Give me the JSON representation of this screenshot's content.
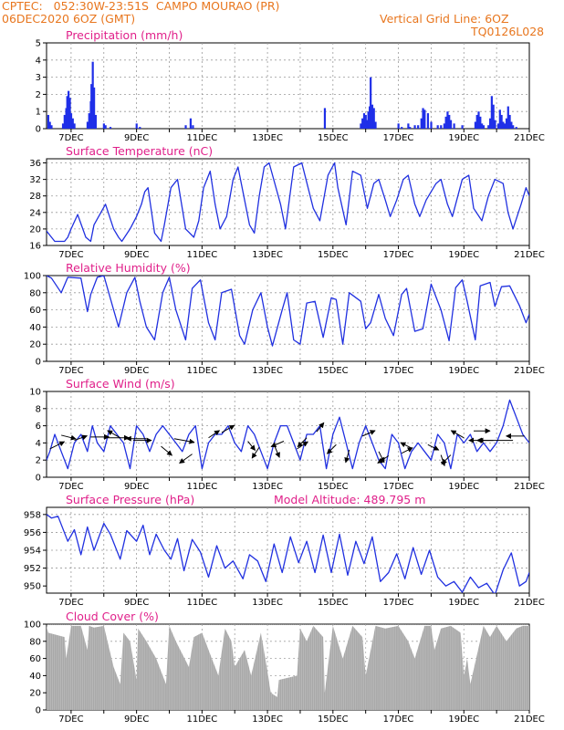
{
  "header": {
    "line1": "CPTEC:   052:30W-23:51S  CAMPO MOURAO (PR)",
    "line2": "06DEC2020 6OZ (GMT)",
    "grid_note": "Vertical Grid Line: 6OZ",
    "code": "TQ0126L028"
  },
  "colors": {
    "line": "#2030e0",
    "bar": "#1f2fe8",
    "cloud": "#a8a8a8",
    "title": "#e0208a",
    "header": "#e8761e"
  },
  "x_axis": {
    "start_day": 6.25,
    "end_day": 21.0,
    "tick_labels": [
      "7DEC",
      "9DEC",
      "11DEC",
      "13DEC",
      "15DEC",
      "17DEC",
      "19DEC",
      "21DEC"
    ],
    "tick_days": [
      7,
      9,
      11,
      13,
      15,
      17,
      19,
      21
    ]
  },
  "chart_data": [
    {
      "id": "precip",
      "type": "bar",
      "title": "Precipitation (mm/h)",
      "ylim": [
        0,
        5
      ],
      "yticks": [
        0,
        1,
        2,
        3,
        4,
        5
      ],
      "x": [
        6.3,
        6.35,
        6.4,
        6.75,
        6.8,
        6.85,
        6.88,
        6.92,
        6.96,
        7.0,
        7.05,
        7.1,
        7.5,
        7.55,
        7.6,
        7.62,
        7.66,
        7.7,
        7.75,
        8.0,
        8.05,
        8.2,
        9.0,
        9.1,
        10.5,
        10.65,
        10.72,
        14.75,
        15.85,
        15.9,
        15.95,
        16.0,
        16.05,
        16.08,
        16.12,
        16.15,
        16.2,
        16.25,
        16.3,
        17.0,
        17.1,
        17.3,
        17.35,
        17.5,
        17.6,
        17.7,
        17.75,
        17.8,
        17.9,
        18.0,
        18.2,
        18.3,
        18.4,
        18.45,
        18.5,
        18.55,
        18.6,
        18.7,
        18.95,
        19.35,
        19.4,
        19.45,
        19.5,
        19.55,
        19.6,
        19.75,
        19.8,
        19.85,
        19.9,
        19.95,
        20.05,
        20.1,
        20.15,
        20.2,
        20.25,
        20.3,
        20.35,
        20.4,
        20.45,
        20.5,
        20.6
      ],
      "values": [
        0.8,
        0.4,
        0.2,
        0.3,
        0.8,
        1.2,
        1.9,
        2.2,
        1.8,
        0.9,
        0.6,
        0.3,
        0.4,
        0.9,
        1.6,
        2.6,
        3.9,
        2.4,
        0.8,
        0.3,
        0.2,
        0.1,
        0.3,
        0.1,
        0.2,
        0.6,
        0.2,
        1.2,
        0.3,
        0.6,
        0.9,
        0.8,
        0.5,
        1.0,
        1.3,
        3.0,
        1.4,
        1.2,
        0.4,
        0.3,
        0.1,
        0.3,
        0.1,
        0.2,
        0.2,
        0.6,
        1.2,
        1.1,
        0.9,
        0.4,
        0.2,
        0.2,
        0.3,
        0.7,
        1.0,
        0.8,
        0.5,
        0.3,
        0.2,
        0.4,
        0.8,
        1.0,
        0.7,
        0.3,
        0.2,
        0.2,
        0.6,
        1.9,
        1.4,
        0.5,
        0.3,
        1.1,
        0.8,
        0.4,
        0.3,
        0.6,
        1.3,
        0.8,
        0.4,
        0.2,
        0.1
      ]
    },
    {
      "id": "temp",
      "type": "line",
      "title": "Surface Temperature (nC)",
      "ylim": [
        16,
        37
      ],
      "yticks": [
        16,
        20,
        24,
        28,
        32,
        36
      ],
      "x": [
        6.25,
        6.4,
        6.5,
        6.8,
        6.9,
        7.0,
        7.2,
        7.45,
        7.6,
        7.7,
        8.05,
        8.3,
        8.45,
        8.55,
        8.8,
        9.0,
        9.05,
        9.15,
        9.25,
        9.35,
        9.55,
        9.75,
        9.85,
        10.05,
        10.25,
        10.5,
        10.75,
        10.9,
        11.05,
        11.25,
        11.4,
        11.55,
        11.75,
        11.95,
        12.1,
        12.45,
        12.6,
        12.75,
        12.9,
        13.05,
        13.4,
        13.55,
        13.7,
        13.8,
        14.05,
        14.4,
        14.6,
        14.85,
        15.05,
        15.15,
        15.4,
        15.6,
        15.85,
        16.05,
        16.15,
        16.25,
        16.4,
        16.6,
        16.75,
        16.95,
        17.15,
        17.3,
        17.5,
        17.65,
        17.85,
        18.15,
        18.3,
        18.5,
        18.65,
        18.95,
        19.15,
        19.3,
        19.55,
        19.75,
        19.95,
        20.2,
        20.35,
        20.5,
        20.75,
        20.9,
        21.0
      ],
      "values": [
        19.5,
        18,
        17,
        17,
        18,
        20,
        23.5,
        18,
        17,
        21,
        26,
        20,
        18,
        17,
        20,
        23,
        24,
        26,
        29,
        30,
        19,
        17,
        21,
        30,
        32,
        20,
        18,
        22,
        30,
        34,
        26,
        20,
        23,
        32,
        35,
        21,
        19,
        28,
        35,
        36,
        26,
        20,
        29,
        35,
        36,
        25,
        22,
        33,
        36,
        30,
        21,
        34,
        33,
        25,
        28,
        31,
        32,
        27,
        23,
        27,
        32,
        33,
        26,
        23,
        27,
        31,
        32,
        26,
        23,
        32,
        33,
        25,
        22,
        28,
        32,
        31,
        24,
        20,
        26,
        30,
        28
      ]
    },
    {
      "id": "rh",
      "type": "line",
      "title": "Relative Humidity (%)",
      "ylim": [
        0,
        100
      ],
      "yticks": [
        0,
        20,
        40,
        60,
        80,
        100
      ],
      "x": [
        6.25,
        6.4,
        6.7,
        6.9,
        7.3,
        7.5,
        7.6,
        7.8,
        8.0,
        8.3,
        8.45,
        8.7,
        8.95,
        9.1,
        9.3,
        9.55,
        9.8,
        10.0,
        10.2,
        10.5,
        10.7,
        10.95,
        11.2,
        11.4,
        11.6,
        11.9,
        12.15,
        12.3,
        12.55,
        12.8,
        13.0,
        13.15,
        13.45,
        13.6,
        13.8,
        14.0,
        14.2,
        14.45,
        14.7,
        14.95,
        15.1,
        15.3,
        15.5,
        15.85,
        16.0,
        16.15,
        16.4,
        16.6,
        16.85,
        17.1,
        17.25,
        17.5,
        17.75,
        18.0,
        18.3,
        18.55,
        18.75,
        18.95,
        19.1,
        19.35,
        19.5,
        19.8,
        19.95,
        20.15,
        20.4,
        20.7,
        20.9,
        21.0
      ],
      "values": [
        100,
        97,
        80,
        98,
        97,
        58,
        78,
        98,
        100,
        60,
        40,
        80,
        98,
        70,
        40,
        25,
        80,
        98,
        60,
        25,
        85,
        95,
        45,
        25,
        80,
        84,
        30,
        20,
        60,
        80,
        40,
        18,
        60,
        80,
        25,
        20,
        68,
        70,
        28,
        74,
        72,
        20,
        80,
        70,
        38,
        45,
        78,
        50,
        30,
        78,
        85,
        35,
        38,
        90,
        60,
        24,
        86,
        95,
        70,
        25,
        88,
        92,
        64,
        87,
        88,
        65,
        45,
        55
      ]
    },
    {
      "id": "wind",
      "type": "line",
      "title": "Surface Wind (m/s)",
      "ylim": [
        0,
        10
      ],
      "yticks": [
        0,
        2,
        4,
        6,
        8,
        10
      ],
      "x": [
        6.25,
        6.35,
        6.5,
        6.7,
        6.9,
        7.1,
        7.3,
        7.5,
        7.65,
        7.8,
        8.0,
        8.2,
        8.4,
        8.6,
        8.8,
        9.0,
        9.2,
        9.4,
        9.6,
        9.8,
        10.0,
        10.2,
        10.4,
        10.6,
        10.8,
        11.0,
        11.2,
        11.4,
        11.6,
        11.8,
        12.0,
        12.2,
        12.4,
        12.6,
        12.8,
        13.0,
        13.2,
        13.4,
        13.6,
        13.8,
        14.0,
        14.2,
        14.4,
        14.6,
        14.8,
        15.0,
        15.2,
        15.4,
        15.6,
        15.8,
        16.0,
        16.2,
        16.4,
        16.6,
        16.8,
        17.0,
        17.2,
        17.4,
        17.6,
        17.8,
        18.0,
        18.2,
        18.4,
        18.6,
        18.8,
        19.0,
        19.2,
        19.4,
        19.6,
        19.8,
        20.0,
        20.2,
        20.4,
        20.6,
        20.8,
        21.0
      ],
      "values": [
        2,
        3,
        5,
        3,
        1,
        4,
        5,
        3,
        6,
        4,
        3,
        6,
        5,
        4,
        1,
        6,
        5,
        3,
        5,
        6,
        5,
        4,
        3,
        5,
        6,
        1,
        4,
        5,
        5,
        6,
        4,
        3,
        6,
        5,
        3,
        1,
        4,
        6,
        6,
        4,
        2,
        5,
        5,
        6,
        1,
        5,
        7,
        4,
        1,
        4,
        6,
        4,
        2,
        1,
        5,
        4,
        1,
        3,
        4,
        3,
        2,
        5,
        4,
        1,
        5,
        4,
        5,
        3,
        4,
        3,
        4,
        6,
        9,
        7,
        5,
        4
      ],
      "arrows": [
        {
          "x": 6.35,
          "y": 3.3,
          "dx": 16,
          "dy": -8
        },
        {
          "x": 6.7,
          "y": 4.9,
          "dx": 16,
          "dy": 4
        },
        {
          "x": 7.1,
          "y": 4.3,
          "dx": 14,
          "dy": -5
        },
        {
          "x": 7.6,
          "y": 4.7,
          "dx": 20,
          "dy": 0
        },
        {
          "x": 8.1,
          "y": 4.6,
          "dx": 24,
          "dy": 0
        },
        {
          "x": 8.5,
          "y": 4.6,
          "dx": -14,
          "dy": -8
        },
        {
          "x": 8.9,
          "y": 4.3,
          "dx": 20,
          "dy": 0
        },
        {
          "x": 9.3,
          "y": 4.5,
          "dx": -22,
          "dy": 0
        },
        {
          "x": 9.75,
          "y": 3.6,
          "dx": 12,
          "dy": 10
        },
        {
          "x": 10.15,
          "y": 4.5,
          "dx": 22,
          "dy": 4
        },
        {
          "x": 10.7,
          "y": 2.7,
          "dx": -14,
          "dy": 10
        },
        {
          "x": 11.2,
          "y": 4.6,
          "dx": 12,
          "dy": -8
        },
        {
          "x": 11.6,
          "y": 5.2,
          "dx": 14,
          "dy": -8
        },
        {
          "x": 12.4,
          "y": 4.2,
          "dx": 8,
          "dy": 10
        },
        {
          "x": 12.75,
          "y": 3.5,
          "dx": -8,
          "dy": 12
        },
        {
          "x": 13.2,
          "y": 3.8,
          "dx": 6,
          "dy": 14
        },
        {
          "x": 13.5,
          "y": 4.2,
          "dx": -14,
          "dy": 6
        },
        {
          "x": 13.9,
          "y": 3.3,
          "dx": 12,
          "dy": -8
        },
        {
          "x": 14.2,
          "y": 4.6,
          "dx": -10,
          "dy": 10
        },
        {
          "x": 14.5,
          "y": 5.3,
          "dx": 8,
          "dy": -10
        },
        {
          "x": 15.1,
          "y": 3.8,
          "dx": -10,
          "dy": 10
        },
        {
          "x": 15.5,
          "y": 3.2,
          "dx": -4,
          "dy": 14
        },
        {
          "x": 15.9,
          "y": 4.8,
          "dx": 14,
          "dy": -6
        },
        {
          "x": 16.4,
          "y": 3.0,
          "dx": 6,
          "dy": 12
        },
        {
          "x": 16.7,
          "y": 2.5,
          "dx": -12,
          "dy": 8
        },
        {
          "x": 17.1,
          "y": 2.8,
          "dx": 12,
          "dy": -6
        },
        {
          "x": 17.4,
          "y": 3.4,
          "dx": -12,
          "dy": -6
        },
        {
          "x": 17.9,
          "y": 3.8,
          "dx": 12,
          "dy": 6
        },
        {
          "x": 18.3,
          "y": 2.6,
          "dx": 4,
          "dy": 12
        },
        {
          "x": 18.6,
          "y": 2.6,
          "dx": -10,
          "dy": 10
        },
        {
          "x": 19.0,
          "y": 4.6,
          "dx": -14,
          "dy": -8
        },
        {
          "x": 19.3,
          "y": 5.4,
          "dx": 18,
          "dy": 0
        },
        {
          "x": 19.6,
          "y": 4.3,
          "dx": -16,
          "dy": 0
        },
        {
          "x": 19.9,
          "y": 4.3,
          "dx": -18,
          "dy": 0
        },
        {
          "x": 20.5,
          "y": 4.3,
          "dx": -38,
          "dy": 0
        },
        {
          "x": 20.85,
          "y": 4.8,
          "dx": -20,
          "dy": 0
        }
      ]
    },
    {
      "id": "press",
      "type": "line",
      "title": "Surface Pressure (hPa)",
      "subtitle": "Model Altitude: 489.795 m",
      "ylim": [
        949.2,
        958.8
      ],
      "yticks": [
        950,
        952,
        954,
        956,
        958
      ],
      "x": [
        6.25,
        6.4,
        6.6,
        6.9,
        7.1,
        7.3,
        7.5,
        7.7,
        8.0,
        8.2,
        8.5,
        8.7,
        9.0,
        9.2,
        9.4,
        9.6,
        9.85,
        10.05,
        10.25,
        10.45,
        10.7,
        10.95,
        11.2,
        11.45,
        11.7,
        11.95,
        12.25,
        12.45,
        12.7,
        12.95,
        13.2,
        13.45,
        13.7,
        13.95,
        14.2,
        14.45,
        14.7,
        14.95,
        15.2,
        15.45,
        15.7,
        15.95,
        16.2,
        16.45,
        16.7,
        16.95,
        17.2,
        17.45,
        17.7,
        17.95,
        18.2,
        18.45,
        18.7,
        18.95,
        19.2,
        19.45,
        19.7,
        19.95,
        20.2,
        20.45,
        20.7,
        20.9,
        21.0
      ],
      "values": [
        958,
        957.6,
        957.8,
        955,
        956.3,
        953.5,
        956.6,
        954,
        957,
        955.8,
        953,
        956.2,
        955,
        956.8,
        953.5,
        955.8,
        954,
        953,
        955.3,
        951.7,
        955.2,
        953.8,
        951,
        954.5,
        952,
        952.8,
        950.8,
        953.5,
        952.8,
        950.5,
        954.7,
        951.5,
        955.5,
        952.6,
        955,
        951.5,
        955.7,
        951.5,
        955.8,
        951.2,
        955,
        952.5,
        955.5,
        950.5,
        951.5,
        953.6,
        950.8,
        954.3,
        951.3,
        954,
        951,
        950,
        950.5,
        949.3,
        951,
        949.8,
        950.3,
        949,
        951.8,
        953.7,
        950,
        950.5,
        951.5
      ]
    },
    {
      "id": "cloud",
      "type": "area",
      "title": "Cloud Cover (%)",
      "ylim": [
        0,
        100
      ],
      "yticks": [
        0,
        20,
        40,
        60,
        80,
        100
      ],
      "x": [
        6.25,
        6.3,
        6.8,
        6.85,
        7.0,
        7.3,
        7.5,
        7.55,
        7.7,
        8.0,
        8.3,
        8.5,
        8.6,
        8.8,
        9.0,
        9.05,
        9.3,
        9.6,
        9.9,
        10.0,
        10.2,
        10.6,
        10.75,
        11.0,
        11.3,
        11.5,
        11.7,
        11.9,
        12.0,
        12.3,
        12.5,
        12.8,
        13.0,
        13.1,
        13.3,
        13.35,
        13.9,
        14.0,
        14.2,
        14.4,
        14.7,
        14.75,
        15.0,
        15.3,
        15.6,
        15.9,
        16.0,
        16.3,
        16.6,
        17.0,
        17.3,
        17.5,
        17.8,
        18.0,
        18.1,
        18.3,
        18.6,
        18.9,
        19.0,
        19.1,
        19.2,
        19.6,
        19.8,
        20.0,
        20.3,
        20.6,
        20.8,
        21.0
      ],
      "values": [
        98,
        90,
        85,
        60,
        98,
        98,
        70,
        98,
        96,
        98,
        50,
        30,
        90,
        80,
        35,
        95,
        80,
        60,
        30,
        98,
        80,
        50,
        85,
        90,
        60,
        40,
        95,
        80,
        50,
        70,
        40,
        90,
        45,
        20,
        15,
        35,
        40,
        95,
        80,
        98,
        85,
        20,
        98,
        60,
        98,
        85,
        40,
        98,
        95,
        98,
        80,
        60,
        98,
        98,
        70,
        95,
        98,
        90,
        40,
        60,
        30,
        98,
        85,
        98,
        80,
        95,
        98,
        98
      ]
    }
  ]
}
